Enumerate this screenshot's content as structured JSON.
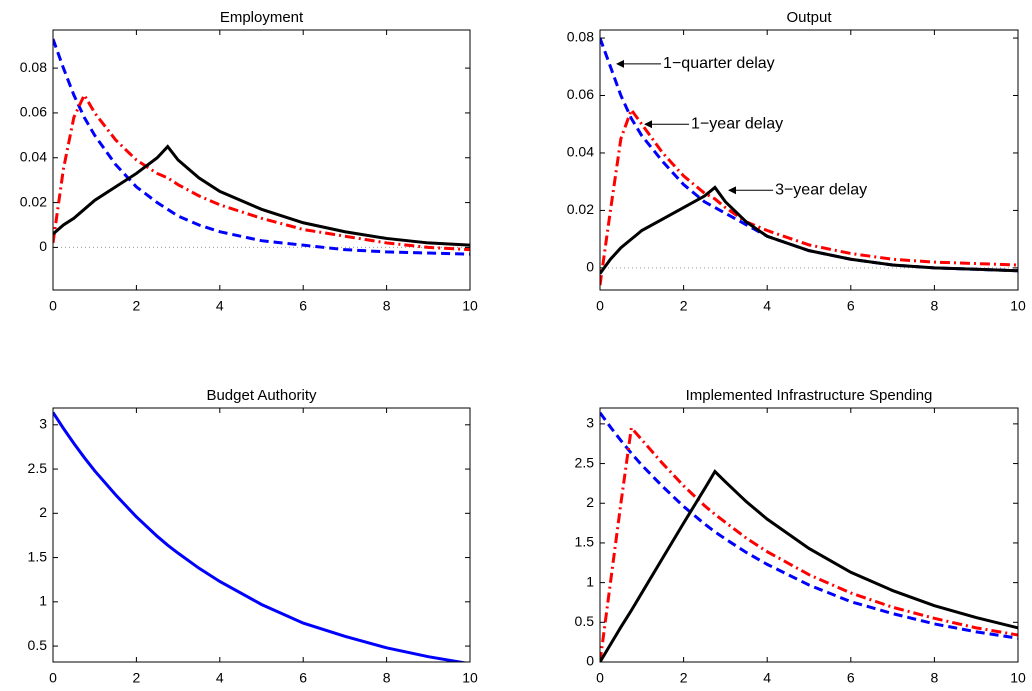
{
  "chart_data": [
    {
      "type": "line",
      "title": "Employment",
      "x": [
        0,
        0.25,
        0.5,
        0.75,
        1,
        1.5,
        2,
        2.5,
        2.75,
        3,
        3.5,
        4,
        5,
        6,
        7,
        8,
        9,
        10
      ],
      "xlim": [
        0,
        10
      ],
      "xticks": [
        0,
        2,
        4,
        6,
        8,
        10
      ],
      "ylim": [
        -0.019,
        0.097
      ],
      "yticks": [
        0,
        0.02,
        0.04,
        0.06,
        0.08
      ],
      "zero_line": true,
      "series": [
        {
          "color": "#0000ff",
          "style": "dashed",
          "values": [
            0.093,
            0.08,
            0.068,
            0.058,
            0.05,
            0.037,
            0.027,
            0.02,
            0.017,
            0.014,
            0.01,
            0.007,
            0.003,
            0.001,
            -0.001,
            -0.002,
            -0.0025,
            -0.003
          ]
        },
        {
          "color": "#ff0000",
          "style": "dashdot",
          "values": [
            0.002,
            0.035,
            0.058,
            0.068,
            0.06,
            0.048,
            0.039,
            0.033,
            0.031,
            0.028,
            0.023,
            0.019,
            0.013,
            0.008,
            0.005,
            0.002,
            0.0,
            -0.001
          ]
        },
        {
          "color": "#000000",
          "style": "solid",
          "values": [
            0.006,
            0.01,
            0.013,
            0.017,
            0.021,
            0.027,
            0.033,
            0.04,
            0.045,
            0.039,
            0.031,
            0.025,
            0.017,
            0.011,
            0.007,
            0.004,
            0.002,
            0.001
          ]
        }
      ]
    },
    {
      "type": "line",
      "title": "Output",
      "x": [
        0,
        0.25,
        0.5,
        0.75,
        1,
        1.5,
        2,
        2.5,
        2.75,
        3,
        3.5,
        4,
        5,
        6,
        7,
        8,
        9,
        10
      ],
      "xlim": [
        0,
        10
      ],
      "xticks": [
        0,
        2,
        4,
        6,
        8,
        10
      ],
      "ylim": [
        -0.0077,
        0.0828
      ],
      "yticks": [
        0,
        0.02,
        0.04,
        0.06,
        0.08
      ],
      "zero_line": true,
      "series": [
        {
          "color": "#0000ff",
          "style": "dashed",
          "values": [
            0.08,
            0.07,
            0.06,
            0.052,
            0.046,
            0.037,
            0.029,
            0.023,
            0.021,
            0.019,
            0.015,
            0.011,
            0.006,
            0.003,
            0.001,
            0,
            -0.0005,
            -0.001
          ]
        },
        {
          "color": "#ff0000",
          "style": "dashdot",
          "values": [
            -0.006,
            0.02,
            0.045,
            0.055,
            0.05,
            0.04,
            0.032,
            0.026,
            0.024,
            0.021,
            0.016,
            0.013,
            0.008,
            0.005,
            0.003,
            0.002,
            0.0015,
            0.001
          ]
        },
        {
          "color": "#000000",
          "style": "solid",
          "values": [
            -0.002,
            0.003,
            0.007,
            0.01,
            0.013,
            0.017,
            0.021,
            0.025,
            0.028,
            0.023,
            0.016,
            0.011,
            0.006,
            0.003,
            0.001,
            0,
            -0.0005,
            -0.001
          ]
        }
      ],
      "annotations": [
        {
          "text": "1−quarter delay",
          "x": 0.36,
          "y": 0.071
        },
        {
          "text": "1−year delay",
          "x": 1.03,
          "y": 0.05
        },
        {
          "text": "3−year delay",
          "x": 3.04,
          "y": 0.027
        }
      ]
    },
    {
      "type": "line",
      "title": "Budget Authority",
      "x": [
        0,
        0.25,
        0.5,
        0.75,
        1,
        1.5,
        2,
        2.5,
        2.75,
        3,
        3.5,
        4,
        5,
        6,
        7,
        8,
        9,
        10
      ],
      "xlim": [
        0,
        10
      ],
      "xticks": [
        0,
        2,
        4,
        6,
        8,
        10
      ],
      "ylim": [
        0.32,
        3.19
      ],
      "yticks": [
        0.5,
        1,
        1.5,
        2,
        2.5,
        3
      ],
      "series": [
        {
          "color": "#0000ff",
          "style": "solid",
          "values": [
            3.14,
            2.96,
            2.79,
            2.63,
            2.48,
            2.21,
            1.96,
            1.74,
            1.64,
            1.55,
            1.38,
            1.23,
            0.97,
            0.76,
            0.61,
            0.48,
            0.38,
            0.3
          ]
        }
      ]
    },
    {
      "type": "line",
      "title": "Implemented Infrastructure Spending",
      "x": [
        0,
        0.25,
        0.5,
        0.75,
        1,
        1.5,
        2,
        2.5,
        2.75,
        3,
        3.5,
        4,
        5,
        6,
        7,
        8,
        9,
        10
      ],
      "xlim": [
        0,
        10
      ],
      "xticks": [
        0,
        2,
        4,
        6,
        8,
        10
      ],
      "ylim": [
        0,
        3.2
      ],
      "yticks": [
        0,
        0.5,
        1,
        1.5,
        2,
        2.5,
        3
      ],
      "series": [
        {
          "color": "#0000ff",
          "style": "dashed",
          "values": [
            3.14,
            2.96,
            2.79,
            2.63,
            2.48,
            2.21,
            1.96,
            1.74,
            1.64,
            1.55,
            1.38,
            1.23,
            0.97,
            0.76,
            0.61,
            0.48,
            0.38,
            0.3
          ]
        },
        {
          "color": "#ff0000",
          "style": "dashdot",
          "values": [
            0.0,
            1.0,
            2.0,
            2.95,
            2.8,
            2.5,
            2.22,
            1.97,
            1.86,
            1.76,
            1.56,
            1.39,
            1.1,
            0.87,
            0.69,
            0.55,
            0.43,
            0.34
          ]
        },
        {
          "color": "#000000",
          "style": "solid",
          "values": [
            0,
            0.22,
            0.44,
            0.65,
            0.87,
            1.31,
            1.75,
            2.18,
            2.4,
            2.27,
            2.02,
            1.8,
            1.43,
            1.13,
            0.9,
            0.71,
            0.56,
            0.43
          ]
        }
      ]
    }
  ]
}
